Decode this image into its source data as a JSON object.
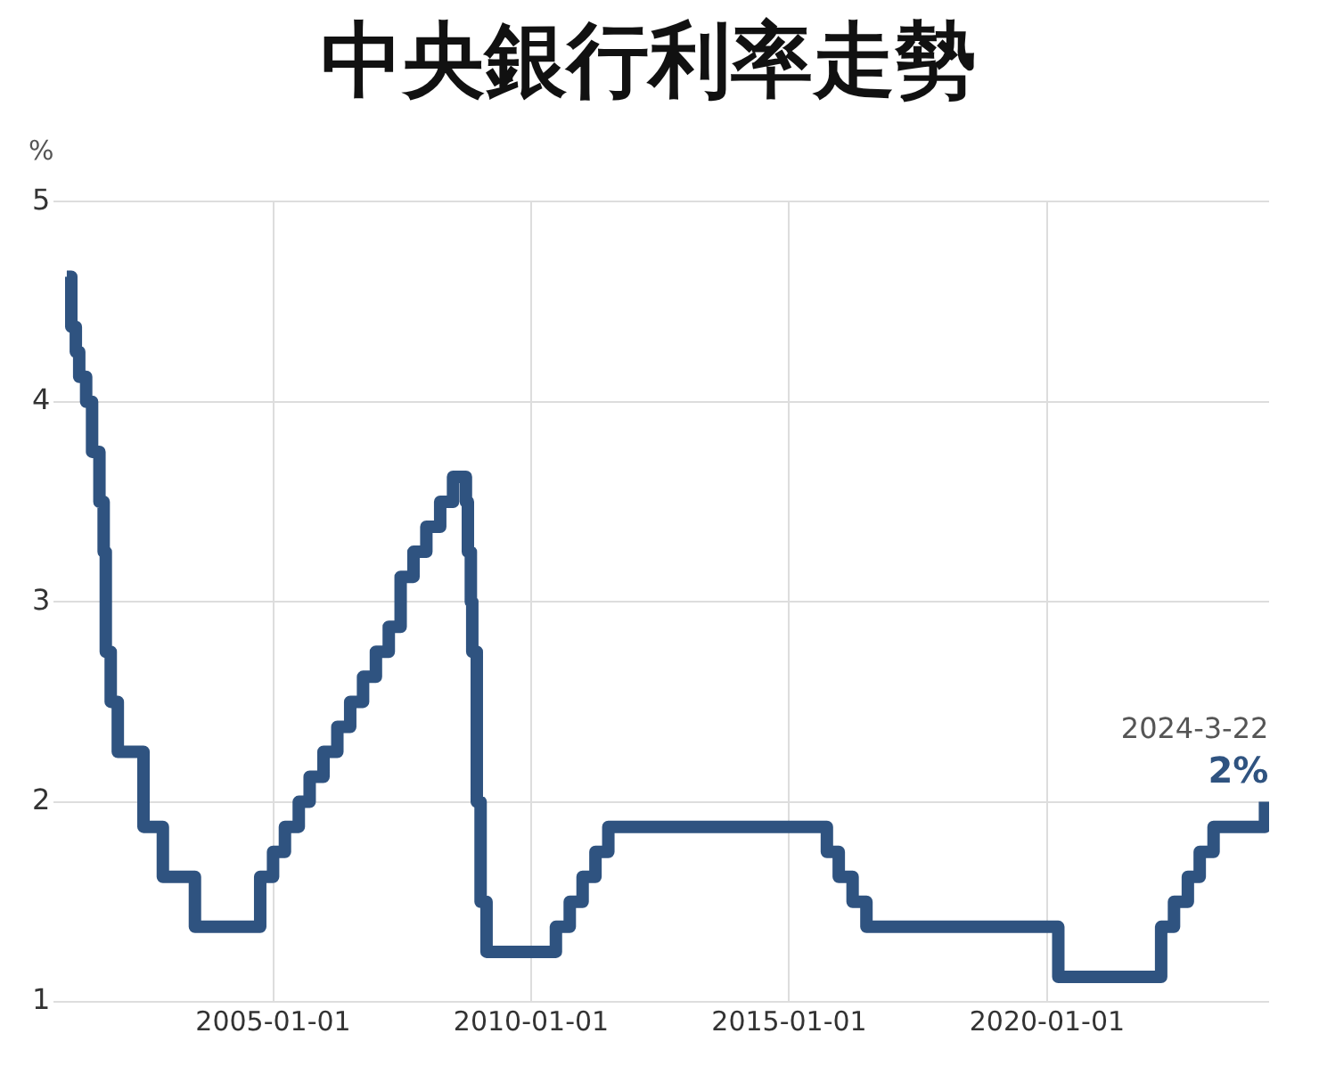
{
  "chart_data": {
    "type": "step",
    "title": "中央銀行利率走勢",
    "ylabel": "%",
    "x": [
      "2001-01-01",
      "2001-02-02",
      "2001-03-06",
      "2001-03-30",
      "2001-05-18",
      "2001-06-29",
      "2001-08-20",
      "2001-09-19",
      "2001-10-04",
      "2001-11-08",
      "2001-12-28",
      "2002-06-28",
      "2002-11-12",
      "2003-06-27",
      "2004-10-01",
      "2004-12-31",
      "2005-03-25",
      "2005-07-01",
      "2005-09-16",
      "2005-12-23",
      "2006-03-31",
      "2006-06-30",
      "2006-09-29",
      "2006-12-29",
      "2007-03-30",
      "2007-06-22",
      "2007-09-21",
      "2007-12-21",
      "2008-03-28",
      "2008-06-27",
      "2008-09-26",
      "2008-10-10",
      "2008-10-31",
      "2008-11-10",
      "2008-12-12",
      "2009-01-08",
      "2009-02-19",
      "2010-06-25",
      "2010-10-01",
      "2010-12-31",
      "2011-04-01",
      "2011-07-01",
      "2015-09-25",
      "2015-12-18",
      "2016-03-25",
      "2016-07-01",
      "2020-03-20",
      "2022-03-18",
      "2022-06-17",
      "2022-09-23",
      "2022-12-16",
      "2023-03-24",
      "2024-03-22"
    ],
    "series": [
      {
        "color": "#2f5380",
        "values": [
          4.625,
          4.375,
          4.25,
          4.125,
          4.0,
          3.75,
          3.5,
          3.25,
          2.75,
          2.5,
          2.25,
          1.875,
          1.625,
          1.375,
          1.625,
          1.75,
          1.875,
          2.0,
          2.125,
          2.25,
          2.375,
          2.5,
          2.625,
          2.75,
          2.875,
          3.125,
          3.25,
          3.375,
          3.5,
          3.625,
          3.5,
          3.25,
          3.0,
          2.75,
          2.0,
          1.5,
          1.25,
          1.375,
          1.5,
          1.625,
          1.75,
          1.875,
          1.75,
          1.625,
          1.5,
          1.375,
          1.125,
          1.375,
          1.5,
          1.625,
          1.75,
          1.875,
          2.0
        ]
      }
    ],
    "xlim": [
      "2000-10-01",
      "2024-04-20"
    ],
    "xticks": [
      "2005-01-01",
      "2010-01-01",
      "2015-01-01",
      "2020-01-01"
    ],
    "ylim": [
      1,
      5
    ],
    "yticks": [
      1,
      2,
      3,
      4,
      5
    ],
    "grid": true,
    "legend": false,
    "marker": "none",
    "line_style": "solid",
    "annotations": [
      {
        "text": "2024-3-22",
        "x": "2024-03-22",
        "y": 2
      },
      {
        "text": "2%",
        "x": "2024-03-22",
        "y": 2
      }
    ]
  }
}
